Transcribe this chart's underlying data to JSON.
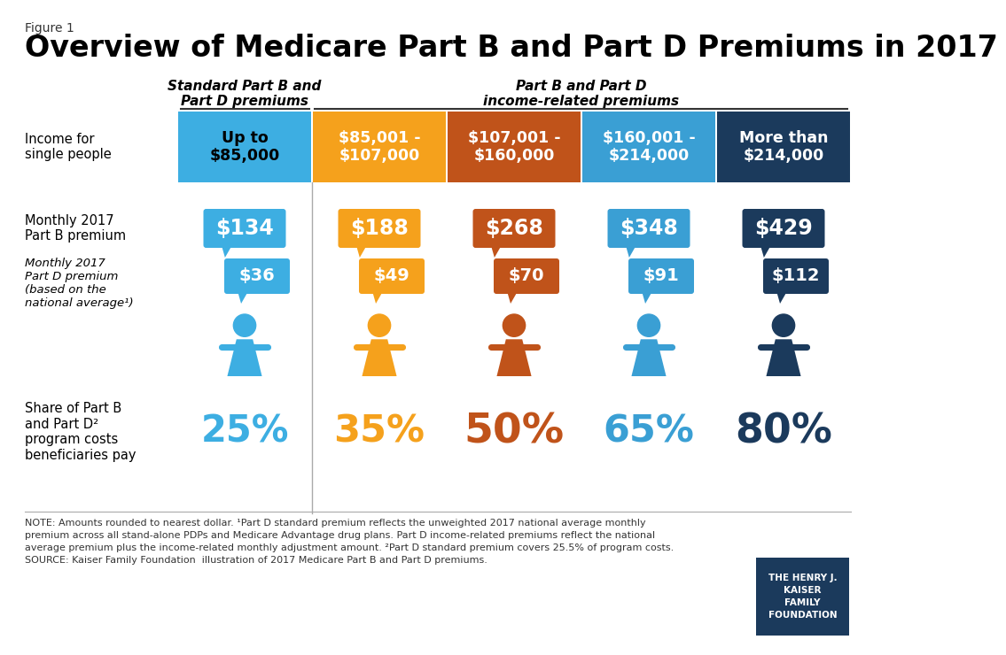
{
  "title": "Overview of Medicare Part B and Part D Premiums in 2017",
  "figure_label": "Figure 1",
  "bg_color": "#ffffff",
  "col_header_labels": [
    "Up to\n$85,000",
    "$85,001 -\n$107,000",
    "$107,001 -\n$160,000",
    "$160,001 -\n$214,000",
    "More than\n$214,000"
  ],
  "col_header_colors": [
    "#3daee2",
    "#f5a11c",
    "#c0531a",
    "#3a9fd4",
    "#1b3a5c"
  ],
  "section_header_left": "Standard Part B and\nPart D premiums",
  "section_header_right": "Part B and Part D\nincome-related premiums",
  "row_label_income": "Income for\nsingle people",
  "row_label_partb": "Monthly 2017\nPart B premium",
  "row_label_partd": "Monthly 2017\nPart D premium\n(based on the\nnational average¹)",
  "row_label_share": "Share of Part B\nand Part D²\nprogram costs\nbeneficiaries pay",
  "part_b_premiums": [
    "$134",
    "$188",
    "$268",
    "$348",
    "$429"
  ],
  "part_b_colors": [
    "#3daee2",
    "#f5a11c",
    "#c0531a",
    "#3a9fd4",
    "#1b3a5c"
  ],
  "part_d_premiums": [
    "$36",
    "$49",
    "$70",
    "$91",
    "$112"
  ],
  "part_d_colors": [
    "#3daee2",
    "#f5a11c",
    "#c0531a",
    "#3a9fd4",
    "#1b3a5c"
  ],
  "share_pct": [
    "25%",
    "35%",
    "50%",
    "65%",
    "80%"
  ],
  "share_colors": [
    "#3daee2",
    "#f5a11c",
    "#c0531a",
    "#3a9fd4",
    "#1b3a5c"
  ],
  "person_colors": [
    "#3daee2",
    "#f5a11c",
    "#c0531a",
    "#3a9fd4",
    "#1b3a5c"
  ],
  "note_text": "NOTE: Amounts rounded to nearest dollar. ¹Part D standard premium reflects the unweighted 2017 national average monthly\npremium across all stand-alone PDPs and Medicare Advantage drug plans. Part D income-related premiums reflect the national\naverage premium plus the income-related monthly adjustment amount. ²Part D standard premium covers 25.5% of program costs.\nSOURCE: Kaiser Family Foundation  illustration of 2017 Medicare Part B and Part D premiums.",
  "kff_box_color": "#1b3a5c",
  "kff_text": "THE HENRY J.\nKAISER\nFAMILY\nFOUNDATION"
}
